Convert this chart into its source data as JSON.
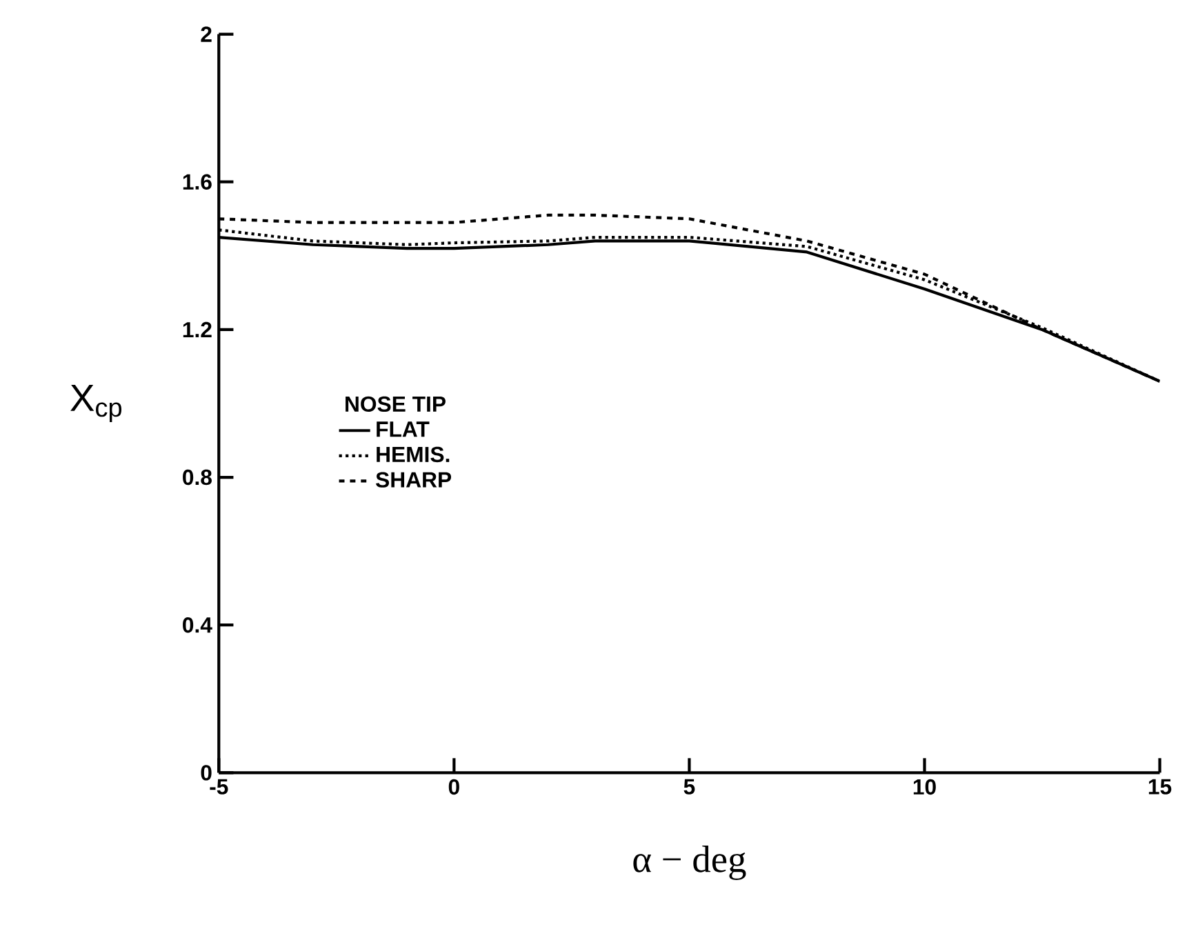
{
  "chart_data": {
    "type": "line",
    "xlabel": "α − deg",
    "ylabel": "X$_{cp}$",
    "legend_title": "NOSE TIP",
    "legend": "left",
    "xlim": [
      -5,
      15
    ],
    "ylim": [
      0,
      2
    ],
    "xticks": [
      -5,
      0,
      5,
      10,
      15
    ],
    "yticks": [
      0,
      0.4,
      0.8,
      1.2,
      1.6,
      2
    ],
    "grid": false,
    "x": [
      -5,
      -3,
      -1,
      0,
      2,
      3,
      5,
      7.5,
      10,
      12.5,
      15
    ],
    "series": [
      {
        "name": "FLAT",
        "color": "#000000",
        "line_style": "solid",
        "values": [
          1.45,
          1.43,
          1.42,
          1.42,
          1.43,
          1.44,
          1.44,
          1.41,
          1.31,
          1.2,
          1.06
        ]
      },
      {
        "name": "HEMIS.",
        "color": "#000000",
        "line_style": "dotted",
        "values": [
          1.47,
          1.44,
          1.43,
          1.435,
          1.44,
          1.45,
          1.45,
          1.425,
          1.335,
          1.205,
          1.06
        ]
      },
      {
        "name": "SHARP",
        "color": "#000000",
        "line_style": "dashed",
        "values": [
          1.5,
          1.49,
          1.49,
          1.49,
          1.51,
          1.51,
          1.5,
          1.44,
          1.35,
          1.2,
          1.06
        ]
      }
    ]
  }
}
